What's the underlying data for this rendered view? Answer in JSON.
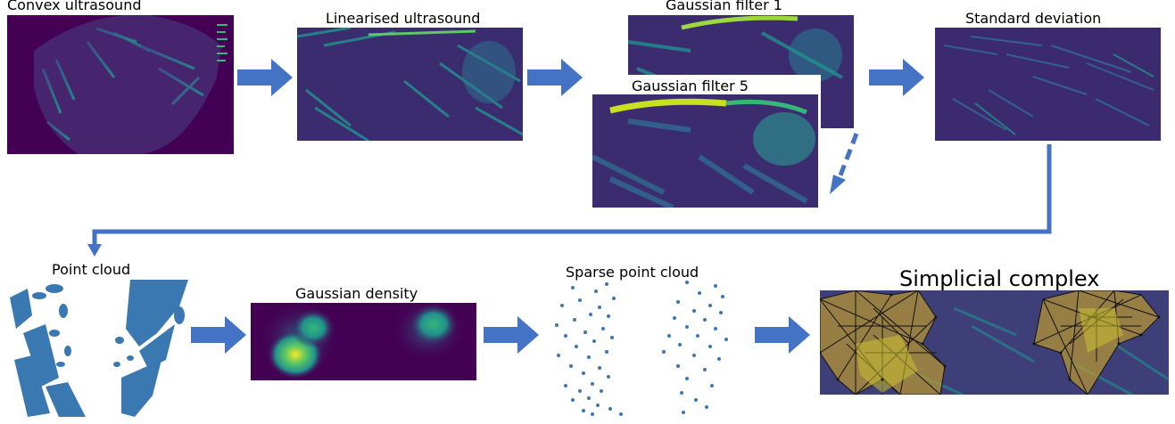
{
  "labels": {
    "convex": "Convex ultrasound",
    "linearised": "Linearised ultrasound",
    "gauss1": "Gaussian filter  1",
    "gauss5": "Gaussian filter  5",
    "stddev": "Standard deviation",
    "pointcloud": "Point cloud",
    "density": "Gaussian density",
    "sparse": "Sparse point cloud",
    "simplicial": "Simplicial complex"
  },
  "colors": {
    "arrow": "#4472c4",
    "viridis_dark": "#440154",
    "viridis_mid": "#21918c",
    "viridis_bright": "#fde725",
    "points": "#3a78b2",
    "complex_fill": "#c8a02a"
  }
}
